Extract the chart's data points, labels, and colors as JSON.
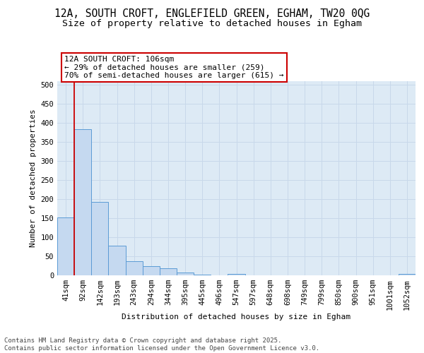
{
  "title_line1": "12A, SOUTH CROFT, ENGLEFIELD GREEN, EGHAM, TW20 0QG",
  "title_line2": "Size of property relative to detached houses in Egham",
  "xlabel": "Distribution of detached houses by size in Egham",
  "ylabel": "Number of detached properties",
  "categories": [
    "41sqm",
    "92sqm",
    "142sqm",
    "193sqm",
    "243sqm",
    "294sqm",
    "344sqm",
    "395sqm",
    "445sqm",
    "496sqm",
    "547sqm",
    "597sqm",
    "648sqm",
    "698sqm",
    "749sqm",
    "799sqm",
    "850sqm",
    "900sqm",
    "951sqm",
    "1001sqm",
    "1052sqm"
  ],
  "values": [
    152,
    383,
    193,
    78,
    38,
    25,
    18,
    7,
    2,
    0,
    3,
    0,
    0,
    0,
    0,
    0,
    0,
    0,
    0,
    0,
    3
  ],
  "bar_color": "#c5d9f0",
  "bar_edge_color": "#5b9bd5",
  "vline_color": "#cc0000",
  "vline_pos": 1.0,
  "annotation_text": "12A SOUTH CROFT: 106sqm\n← 29% of detached houses are smaller (259)\n70% of semi-detached houses are larger (615) →",
  "annotation_box_color": "#cc0000",
  "ylim": [
    0,
    510
  ],
  "yticks": [
    0,
    50,
    100,
    150,
    200,
    250,
    300,
    350,
    400,
    450,
    500
  ],
  "grid_color": "#c8d8ea",
  "bg_color": "#ddeaf5",
  "footer_text": "Contains HM Land Registry data © Crown copyright and database right 2025.\nContains public sector information licensed under the Open Government Licence v3.0.",
  "title_fontsize": 10.5,
  "subtitle_fontsize": 9.5,
  "axis_label_fontsize": 8,
  "tick_fontsize": 7.5,
  "annotation_fontsize": 8,
  "footer_fontsize": 6.5
}
